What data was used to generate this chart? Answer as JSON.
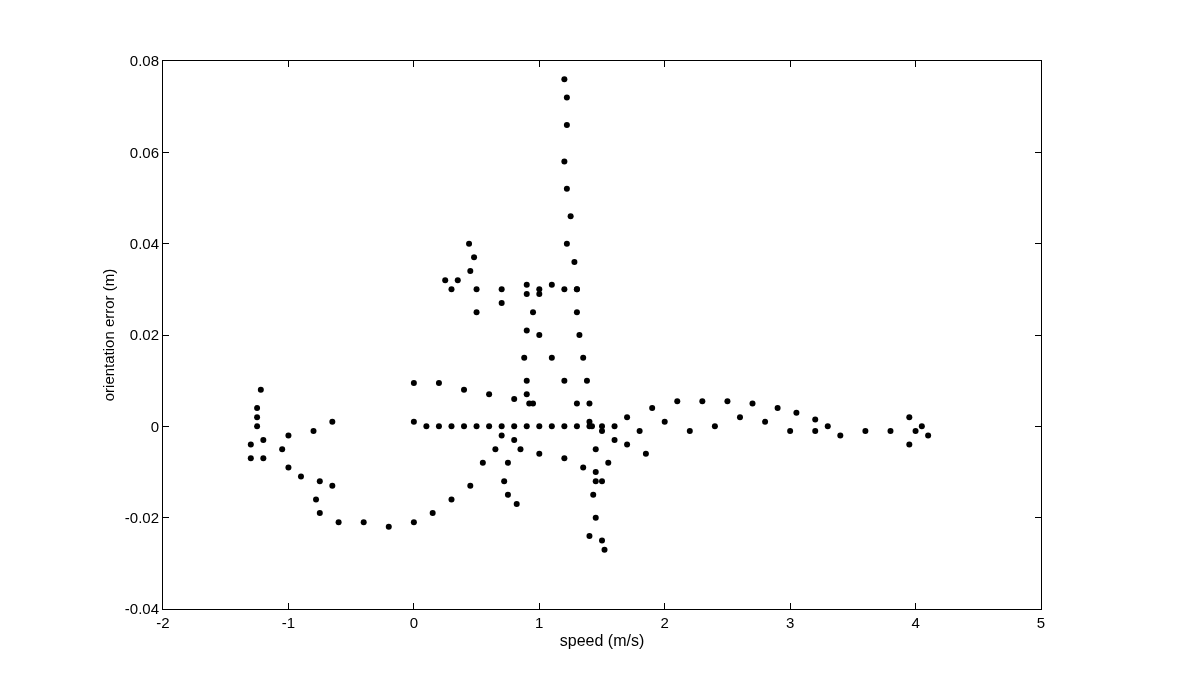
{
  "chart_data": {
    "type": "scatter",
    "xlabel": "speed (m/s)",
    "ylabel": "orientation error (m)",
    "xlim": [
      -2,
      5
    ],
    "xticks": [
      -2,
      -1,
      0,
      1,
      2,
      3,
      4,
      5
    ],
    "ylim": [
      -0.04,
      0.08
    ],
    "yticks": [
      -0.04,
      -0.02,
      0,
      0.02,
      0.04,
      0.06,
      0.08
    ],
    "marker": "circle",
    "series": [
      {
        "color": "#000000",
        "x": [
          -0.65,
          -0.8,
          -1.0,
          -1.2,
          -1.25,
          -1.25,
          -1.22,
          -1.25,
          -1.3,
          -1.3,
          -1.2,
          -1.05,
          -1.0,
          -0.9,
          -0.75,
          -0.65,
          -0.78,
          -0.75,
          -0.6,
          -0.4,
          -0.2,
          0.0,
          0.15,
          0.3,
          0.45,
          0.55,
          0.65,
          0.7,
          0.44,
          0.48,
          0.45,
          0.35,
          0.25,
          0.3,
          0.5,
          0.7,
          0.9,
          1.0,
          1.1,
          1.2,
          1.3,
          0.5,
          0.7,
          0.9,
          1.0,
          0.95,
          1.0,
          1.1,
          1.2,
          1.3,
          1.4,
          0.9,
          0.88,
          0.9,
          0.92,
          1.2,
          1.22,
          1.22,
          1.2,
          1.22,
          1.25,
          1.22,
          1.28,
          1.3,
          1.3,
          1.32,
          1.35,
          1.38,
          1.4,
          1.42,
          1.45,
          1.45,
          1.43,
          1.45,
          1.5,
          1.52,
          1.4,
          0.0,
          0.1,
          0.2,
          0.3,
          0.4,
          0.5,
          0.6,
          0.7,
          0.8,
          0.9,
          1.0,
          1.1,
          1.2,
          1.3,
          1.4,
          1.5,
          0.0,
          0.2,
          0.4,
          0.6,
          0.8,
          0.9,
          0.95,
          1.7,
          1.9,
          2.1,
          2.3,
          2.5,
          2.7,
          2.9,
          3.05,
          3.2,
          3.3,
          1.6,
          1.8,
          2.0,
          2.2,
          2.4,
          2.6,
          2.8,
          3.0,
          3.2,
          3.4,
          3.6,
          3.8,
          3.95,
          4.0,
          4.1,
          3.95,
          4.05,
          1.5,
          1.7,
          1.85,
          0.8,
          0.75,
          0.72,
          0.75,
          0.82,
          0.85,
          1.0,
          1.2,
          1.35,
          1.45,
          1.6,
          1.55,
          1.5
        ],
        "values": [
          0.001,
          -0.001,
          -0.002,
          -0.003,
          0.0,
          0.004,
          0.008,
          0.002,
          -0.004,
          -0.007,
          -0.007,
          -0.005,
          -0.009,
          -0.011,
          -0.012,
          -0.013,
          -0.016,
          -0.019,
          -0.021,
          -0.021,
          -0.022,
          -0.021,
          -0.019,
          -0.016,
          -0.013,
          -0.008,
          -0.005,
          -0.002,
          0.04,
          0.037,
          0.034,
          0.032,
          0.032,
          0.03,
          0.03,
          0.03,
          0.031,
          0.03,
          0.031,
          0.03,
          0.03,
          0.025,
          0.027,
          0.029,
          0.029,
          0.025,
          0.02,
          0.015,
          0.01,
          0.005,
          0.001,
          0.021,
          0.015,
          0.01,
          0.005,
          0.076,
          0.072,
          0.066,
          0.058,
          0.052,
          0.046,
          0.04,
          0.036,
          0.03,
          0.025,
          0.02,
          0.015,
          0.01,
          0.005,
          0.0,
          -0.005,
          -0.01,
          -0.015,
          -0.02,
          -0.025,
          -0.027,
          -0.024,
          0.001,
          0.0,
          0.0,
          0.0,
          0.0,
          0.0,
          0.0,
          0.0,
          0.0,
          0.0,
          0.0,
          0.0,
          0.0,
          0.0,
          0.0,
          0.0,
          0.0095,
          0.0095,
          0.008,
          0.007,
          0.006,
          0.007,
          0.005,
          0.002,
          0.004,
          0.0055,
          0.0055,
          0.0055,
          0.005,
          0.004,
          0.003,
          0.0015,
          0.0,
          0.0,
          -0.001,
          0.001,
          -0.001,
          0.0,
          0.002,
          0.001,
          -0.001,
          -0.001,
          -0.002,
          -0.001,
          -0.001,
          0.002,
          -0.001,
          -0.002,
          -0.004,
          0.0,
          -0.001,
          -0.004,
          -0.006,
          -0.003,
          -0.008,
          -0.012,
          -0.015,
          -0.017,
          -0.005,
          -0.006,
          -0.007,
          -0.009,
          -0.012,
          -0.003,
          -0.008,
          -0.012
        ]
      }
    ]
  }
}
